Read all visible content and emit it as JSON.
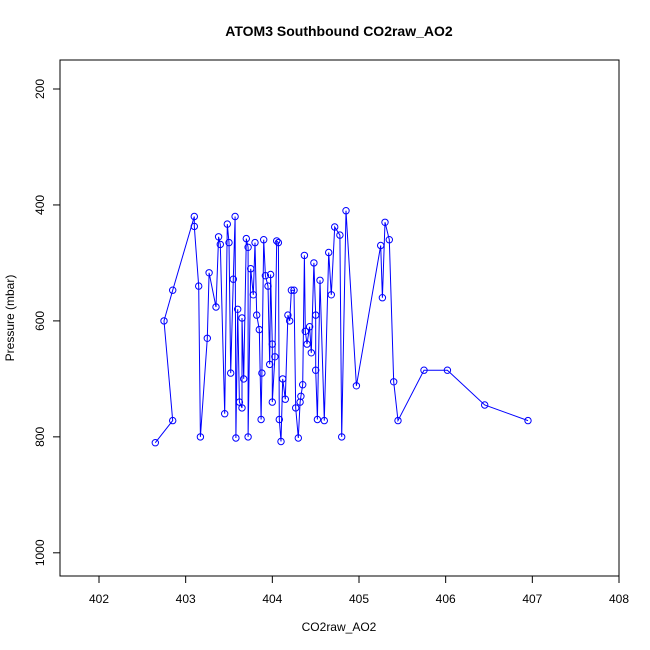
{
  "chart_data": {
    "type": "scatter",
    "title": "ATOM3 Southbound CO2raw_AO2",
    "xlabel": "CO2raw_AO2",
    "ylabel": "Pressure (mbar)",
    "xlim": [
      401.55,
      408.0
    ],
    "ylim": [
      1040,
      150
    ],
    "y_reversed": true,
    "grid": false,
    "x_ticks": [
      402,
      403,
      404,
      405,
      406,
      407,
      408
    ],
    "y_ticks": [
      200,
      400,
      600,
      800,
      1000
    ],
    "color": "#0000ff",
    "series": [
      {
        "values": [
          [
            402.65,
            810
          ],
          [
            402.85,
            772
          ],
          [
            402.75,
            600
          ],
          [
            402.85,
            547
          ],
          [
            403.1,
            420
          ],
          [
            403.1,
            437
          ],
          [
            403.15,
            540
          ],
          [
            403.17,
            800
          ],
          [
            403.25,
            630
          ],
          [
            403.27,
            517
          ],
          [
            403.35,
            576
          ],
          [
            403.38,
            455
          ],
          [
            403.4,
            468
          ],
          [
            403.45,
            760
          ],
          [
            403.48,
            433
          ],
          [
            403.5,
            465
          ],
          [
            403.52,
            690
          ],
          [
            403.55,
            528
          ],
          [
            403.57,
            420
          ],
          [
            403.58,
            802
          ],
          [
            403.6,
            580
          ],
          [
            403.62,
            740
          ],
          [
            403.65,
            750
          ],
          [
            403.65,
            595
          ],
          [
            403.67,
            700
          ],
          [
            403.7,
            458
          ],
          [
            403.72,
            473
          ],
          [
            403.72,
            800
          ],
          [
            403.75,
            510
          ],
          [
            403.78,
            555
          ],
          [
            403.8,
            465
          ],
          [
            403.82,
            590
          ],
          [
            403.85,
            615
          ],
          [
            403.87,
            770
          ],
          [
            403.88,
            690
          ],
          [
            403.9,
            460
          ],
          [
            403.92,
            522
          ],
          [
            403.95,
            540
          ],
          [
            403.97,
            675
          ],
          [
            403.98,
            520
          ],
          [
            404.0,
            640
          ],
          [
            404.0,
            740
          ],
          [
            404.03,
            662
          ],
          [
            404.05,
            462
          ],
          [
            404.07,
            465
          ],
          [
            404.08,
            770
          ],
          [
            404.1,
            808
          ],
          [
            404.12,
            700
          ],
          [
            404.15,
            735
          ],
          [
            404.18,
            590
          ],
          [
            404.2,
            600
          ],
          [
            404.22,
            547
          ],
          [
            404.25,
            547
          ],
          [
            404.27,
            750
          ],
          [
            404.3,
            802
          ],
          [
            404.32,
            740
          ],
          [
            404.33,
            730
          ],
          [
            404.35,
            710
          ],
          [
            404.37,
            487
          ],
          [
            404.38,
            618
          ],
          [
            404.4,
            640
          ],
          [
            404.43,
            610
          ],
          [
            404.45,
            655
          ],
          [
            404.48,
            500
          ],
          [
            404.5,
            590
          ],
          [
            404.5,
            685
          ],
          [
            404.52,
            770
          ],
          [
            404.55,
            530
          ],
          [
            404.6,
            772
          ],
          [
            404.65,
            482
          ],
          [
            404.68,
            555
          ],
          [
            404.72,
            438
          ],
          [
            404.78,
            452
          ],
          [
            404.8,
            800
          ],
          [
            404.85,
            410
          ],
          [
            404.97,
            712
          ],
          [
            405.25,
            470
          ],
          [
            405.27,
            560
          ],
          [
            405.3,
            430
          ],
          [
            405.35,
            460
          ],
          [
            405.4,
            705
          ],
          [
            405.45,
            772
          ],
          [
            405.75,
            685
          ],
          [
            406.02,
            685
          ],
          [
            406.45,
            745
          ],
          [
            406.95,
            772
          ]
        ]
      }
    ]
  }
}
